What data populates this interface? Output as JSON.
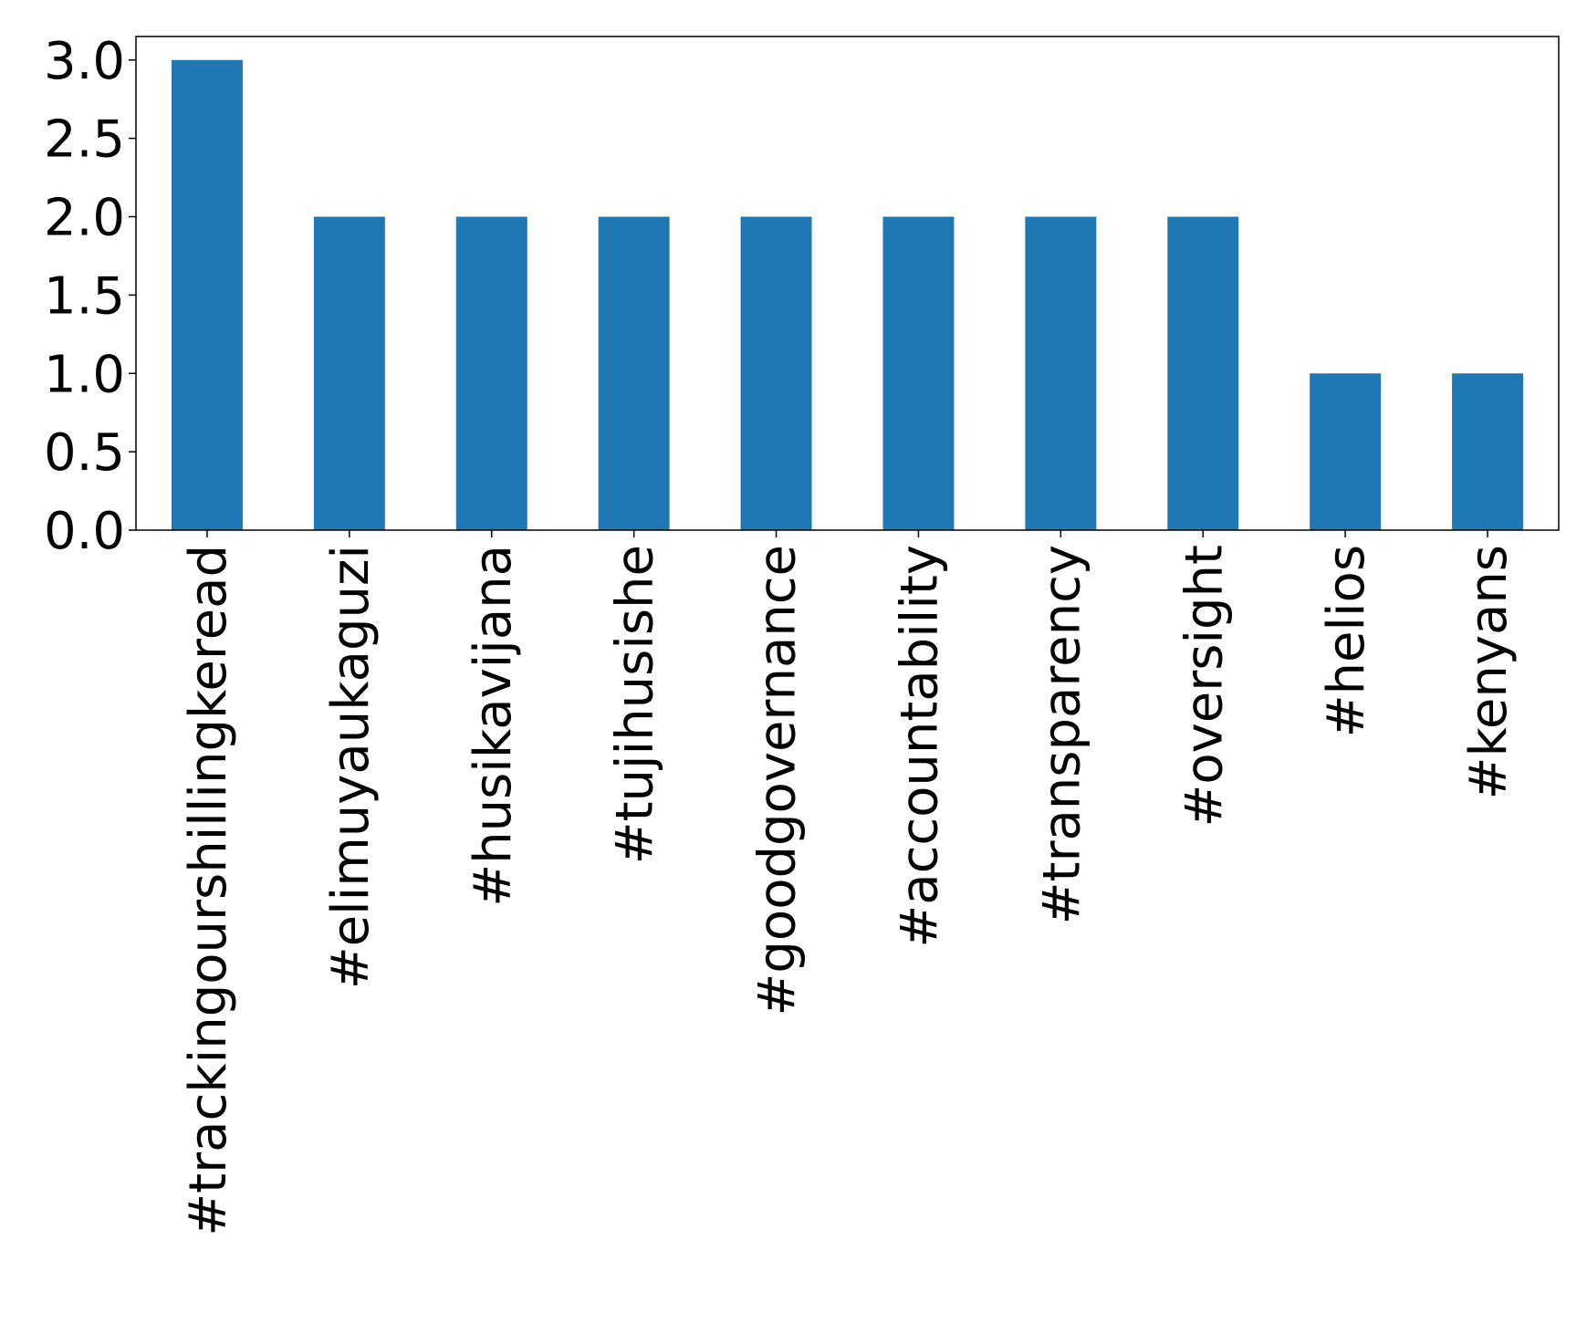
{
  "chart_data": {
    "type": "bar",
    "categories": [
      "#trackingourshillingkeread",
      "#elimuyaukaguzi",
      "#husikavijana",
      "#tujihusishe",
      "#goodgovernance",
      "#accountability",
      "#transparency",
      "#oversight",
      "#helios",
      "#kenyans"
    ],
    "values": [
      3,
      2,
      2,
      2,
      2,
      2,
      2,
      2,
      1,
      1
    ],
    "color": "#1f77b4",
    "ylim": [
      0,
      3.15
    ],
    "yticks": [
      {
        "value": 0,
        "label": "0.0"
      },
      {
        "value": 0.5,
        "label": "0.5"
      },
      {
        "value": 1,
        "label": "1.0"
      },
      {
        "value": 1.5,
        "label": "1.5"
      },
      {
        "value": 2,
        "label": "2.0"
      },
      {
        "value": 2.5,
        "label": "2.5"
      },
      {
        "value": 3,
        "label": "3.0"
      }
    ],
    "grid": false
  }
}
